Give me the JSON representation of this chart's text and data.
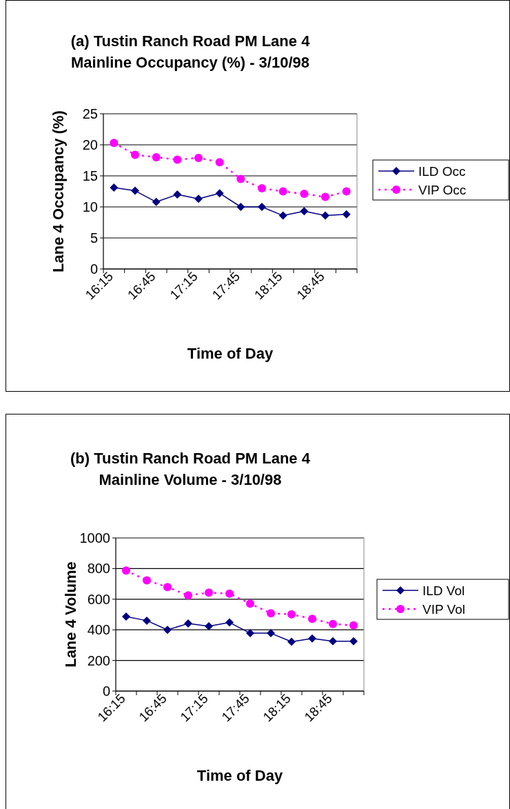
{
  "chart_data": [
    {
      "type": "line",
      "title": "(a) Tustin Ranch Road PM Lane 4\nMainline Occupancy (%) - 3/10/98",
      "xlabel": "Time of Day",
      "ylabel": "Lane 4 Occupancy (%)",
      "categories": [
        "16:15",
        null,
        "16:45",
        null,
        "17:15",
        null,
        "17:45",
        null,
        "18:15",
        null,
        "18:45",
        null
      ],
      "ylim": [
        0,
        25
      ],
      "yticks": [
        0,
        5,
        10,
        15,
        20,
        25
      ],
      "grid": "y",
      "legend": "right",
      "series": [
        {
          "name": "ILD Occ",
          "color": "#000080",
          "marker": "diamond",
          "line_style": "solid",
          "values": [
            13.1,
            12.6,
            10.8,
            12.0,
            11.3,
            12.2,
            10.0,
            10.0,
            8.6,
            9.3,
            8.6,
            8.8
          ]
        },
        {
          "name": "VIP Occ",
          "color": "#ff00ff",
          "marker": "circle",
          "line_style": "dotted",
          "values": [
            20.3,
            18.4,
            18.0,
            17.6,
            17.9,
            17.2,
            14.5,
            13.0,
            12.5,
            12.1,
            11.6,
            12.5
          ]
        }
      ]
    },
    {
      "type": "line",
      "title": "(b) Tustin Ranch Road PM Lane 4\nMainline Volume - 3/10/98",
      "xlabel": "Time of Day",
      "ylabel": "Lane 4 Volume",
      "categories": [
        "16:15",
        null,
        "16:45",
        null,
        "17:15",
        null,
        "17:45",
        null,
        "18:15",
        null,
        "18:45",
        null
      ],
      "ylim": [
        0,
        1000
      ],
      "yticks": [
        0,
        200,
        400,
        600,
        800,
        1000
      ],
      "grid": "y",
      "legend": "right",
      "series": [
        {
          "name": "ILD Vol",
          "color": "#000080",
          "marker": "diamond",
          "line_style": "solid",
          "values": [
            486,
            460,
            400,
            441,
            423,
            448,
            378,
            378,
            322,
            343,
            325,
            325
          ]
        },
        {
          "name": "VIP Vol",
          "color": "#ff00ff",
          "marker": "circle",
          "line_style": "dotted",
          "values": [
            787,
            723,
            679,
            625,
            643,
            636,
            571,
            508,
            501,
            472,
            438,
            429
          ]
        }
      ]
    }
  ]
}
